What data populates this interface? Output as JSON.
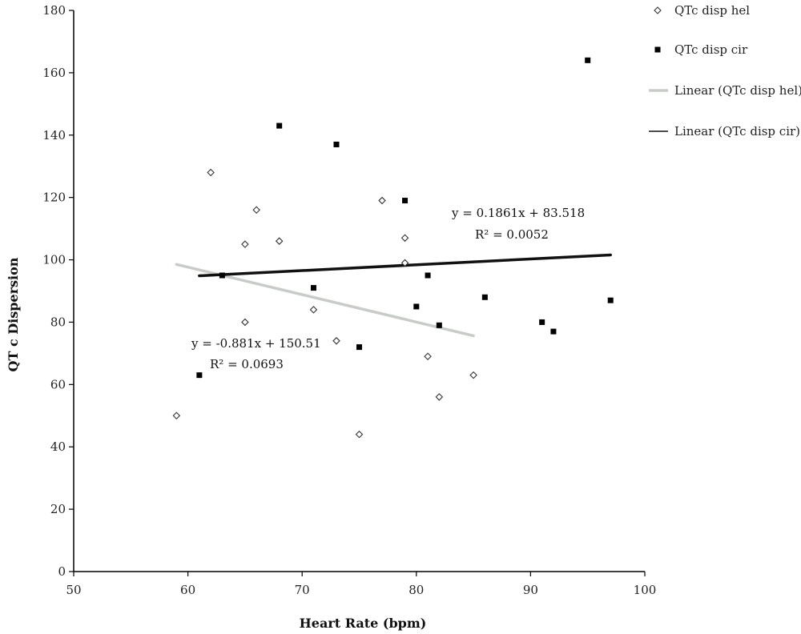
{
  "chart_data": {
    "type": "scatter",
    "title": "",
    "xlabel": "Heart Rate (bpm)",
    "ylabel": "QT c Dispersion",
    "xlim": [
      50,
      100
    ],
    "ylim": [
      0,
      180
    ],
    "xticks": [
      50,
      60,
      70,
      80,
      90,
      100
    ],
    "yticks": [
      0,
      20,
      40,
      60,
      80,
      100,
      120,
      140,
      160,
      180
    ],
    "grid": false,
    "legend_position": "right",
    "series": [
      {
        "name": "QTc disp hel",
        "marker": "open-diamond",
        "color": "#333333",
        "points": [
          [
            59,
            50
          ],
          [
            62,
            128
          ],
          [
            65,
            105
          ],
          [
            65,
            80
          ],
          [
            66,
            116
          ],
          [
            68,
            106
          ],
          [
            71,
            84
          ],
          [
            73,
            74
          ],
          [
            75,
            44
          ],
          [
            77,
            119
          ],
          [
            79,
            107
          ],
          [
            79,
            99
          ],
          [
            81,
            69
          ],
          [
            82,
            56
          ],
          [
            85,
            63
          ]
        ]
      },
      {
        "name": "QTc disp cir",
        "marker": "filled-square",
        "color": "#000000",
        "points": [
          [
            61,
            63
          ],
          [
            63,
            95
          ],
          [
            68,
            143
          ],
          [
            71,
            91
          ],
          [
            73,
            137
          ],
          [
            75,
            72
          ],
          [
            79,
            119
          ],
          [
            80,
            85
          ],
          [
            81,
            95
          ],
          [
            82,
            79
          ],
          [
            86,
            88
          ],
          [
            91,
            80
          ],
          [
            92,
            77
          ],
          [
            95,
            164
          ],
          [
            97,
            87
          ]
        ]
      }
    ],
    "trendlines": [
      {
        "name": "Linear (QTc disp hel)",
        "color": "#c8ccc8",
        "x_range": [
          59,
          85
        ],
        "slope": -0.881,
        "intercept": 150.51,
        "equation": "y = -0.881x + 150.51",
        "r2_label": "R² = 0.0693"
      },
      {
        "name": "Linear (QTc disp cir)",
        "color": "#111111",
        "x_range": [
          61,
          97
        ],
        "slope": 0.1861,
        "intercept": 83.518,
        "equation": "y = 0.1861x + 83.518",
        "r2_label": "R² = 0.0052"
      }
    ]
  }
}
